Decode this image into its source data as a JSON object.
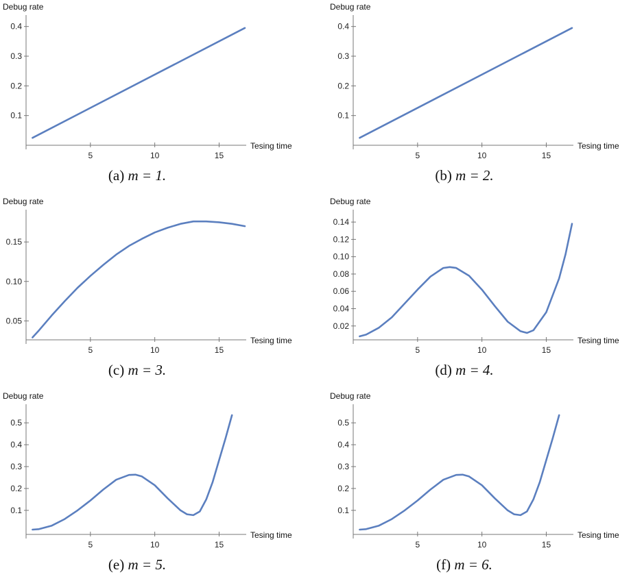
{
  "chart_data": [
    {
      "type": "line",
      "ylabel": "Debug rate",
      "xlabel": "Tesing time",
      "caption": "(a) m = 1.",
      "caption_prefix": "(a) ",
      "caption_math": "m = 1.",
      "xlim": [
        0,
        17
      ],
      "ylim": [
        0.0,
        0.42
      ],
      "x_axis_at": 0.0,
      "xticks": [
        5,
        10,
        15
      ],
      "yticks": [
        0.1,
        0.2,
        0.3,
        0.4
      ],
      "ytick_labels": [
        "0.1",
        "0.2",
        "0.3",
        "0.4"
      ],
      "series": [
        {
          "x": [
            0.5,
            17
          ],
          "y": [
            0.025,
            0.395
          ]
        }
      ]
    },
    {
      "type": "line",
      "ylabel": "Debug rate",
      "xlabel": "Tesing time",
      "caption": "(b) m = 2.",
      "caption_prefix": "(b) ",
      "caption_math": "m = 2.",
      "xlim": [
        0,
        17
      ],
      "ylim": [
        0.0,
        0.42
      ],
      "x_axis_at": 0.0,
      "xticks": [
        5,
        10,
        15
      ],
      "yticks": [
        0.1,
        0.2,
        0.3,
        0.4
      ],
      "ytick_labels": [
        "0.1",
        "0.2",
        "0.3",
        "0.4"
      ],
      "series": [
        {
          "x": [
            0.5,
            17
          ],
          "y": [
            0.025,
            0.395
          ]
        }
      ]
    },
    {
      "type": "line",
      "ylabel": "Debug rate",
      "xlabel": "Tesing time",
      "caption": "(c) m = 3.",
      "caption_prefix": "(c) ",
      "caption_math": "m = 3.",
      "xlim": [
        0,
        17
      ],
      "ylim": [
        0.026,
        0.184
      ],
      "x_axis_at": 0.026,
      "xticks": [
        5,
        10,
        15
      ],
      "yticks": [
        0.05,
        0.1,
        0.15
      ],
      "ytick_labels": [
        "0.05",
        "0.10",
        "0.15"
      ],
      "series": [
        {
          "x": [
            0.5,
            1,
            2,
            3,
            4,
            5,
            6,
            7,
            8,
            9,
            10,
            11,
            12,
            13,
            13.5,
            14,
            15,
            16,
            17
          ],
          "y": [
            0.029,
            0.038,
            0.057,
            0.075,
            0.092,
            0.107,
            0.121,
            0.134,
            0.145,
            0.154,
            0.162,
            0.168,
            0.173,
            0.176,
            0.176,
            0.176,
            0.175,
            0.173,
            0.17
          ]
        }
      ]
    },
    {
      "type": "line",
      "ylabel": "Debug rate",
      "xlabel": "Tesing time",
      "caption": "(d) m = 4.",
      "caption_prefix": "(d) ",
      "caption_math": "m = 4.",
      "xlim": [
        0,
        17
      ],
      "ylim": [
        0.004,
        0.148
      ],
      "x_axis_at": 0.004,
      "xticks": [
        5,
        10,
        15
      ],
      "yticks": [
        0.02,
        0.04,
        0.06,
        0.08,
        0.1,
        0.12,
        0.14
      ],
      "ytick_labels": [
        "0.02",
        "0.04",
        "0.06",
        "0.08",
        "0.10",
        "0.12",
        "0.14"
      ],
      "series": [
        {
          "x": [
            0.5,
            1,
            2,
            3,
            4,
            5,
            6,
            7,
            7.5,
            8,
            9,
            10,
            11,
            12,
            13,
            13.5,
            14,
            15,
            16,
            16.5,
            17
          ],
          "y": [
            0.008,
            0.01,
            0.018,
            0.03,
            0.046,
            0.062,
            0.077,
            0.087,
            0.088,
            0.087,
            0.078,
            0.062,
            0.043,
            0.025,
            0.014,
            0.012,
            0.015,
            0.036,
            0.075,
            0.103,
            0.138
          ]
        }
      ]
    },
    {
      "type": "line",
      "ylabel": "Debug rate",
      "xlabel": "Tesing time",
      "caption": "(e) m = 5.",
      "caption_prefix": "(e) ",
      "caption_math": "m = 5.",
      "xlim": [
        0,
        17
      ],
      "ylim": [
        -0.01,
        0.56
      ],
      "x_axis_at": -0.01,
      "xticks": [
        5,
        10,
        15
      ],
      "yticks": [
        0.1,
        0.2,
        0.3,
        0.4,
        0.5
      ],
      "ytick_labels": [
        "0.1",
        "0.2",
        "0.3",
        "0.4",
        "0.5"
      ],
      "series": [
        {
          "x": [
            0.5,
            1,
            2,
            3,
            4,
            5,
            6,
            7,
            8,
            8.5,
            9,
            10,
            11,
            12,
            12.5,
            13,
            13.5,
            14,
            14.5,
            15,
            15.5,
            16
          ],
          "y": [
            0.012,
            0.014,
            0.03,
            0.06,
            0.1,
            0.145,
            0.195,
            0.24,
            0.262,
            0.263,
            0.255,
            0.215,
            0.155,
            0.1,
            0.082,
            0.078,
            0.095,
            0.15,
            0.23,
            0.33,
            0.43,
            0.535
          ]
        }
      ]
    },
    {
      "type": "line",
      "ylabel": "Debug rate",
      "xlabel": "Tesing time",
      "caption": "(f) m = 6.",
      "caption_prefix": "(f) ",
      "caption_math": "m = 6.",
      "xlim": [
        0,
        17
      ],
      "ylim": [
        -0.01,
        0.56
      ],
      "x_axis_at": -0.01,
      "xticks": [
        5,
        10,
        15
      ],
      "yticks": [
        0.1,
        0.2,
        0.3,
        0.4,
        0.5
      ],
      "ytick_labels": [
        "0.1",
        "0.2",
        "0.3",
        "0.4",
        "0.5"
      ],
      "series": [
        {
          "x": [
            0.5,
            1,
            2,
            3,
            4,
            5,
            6,
            7,
            8,
            8.5,
            9,
            10,
            11,
            12,
            12.5,
            13,
            13.5,
            14,
            14.5,
            15,
            15.5,
            16
          ],
          "y": [
            0.012,
            0.014,
            0.03,
            0.06,
            0.1,
            0.145,
            0.195,
            0.24,
            0.262,
            0.263,
            0.255,
            0.215,
            0.155,
            0.1,
            0.082,
            0.078,
            0.095,
            0.15,
            0.23,
            0.33,
            0.43,
            0.535
          ]
        }
      ]
    }
  ],
  "colors": {
    "series": "#5b7fbf",
    "axis": "#777777"
  }
}
